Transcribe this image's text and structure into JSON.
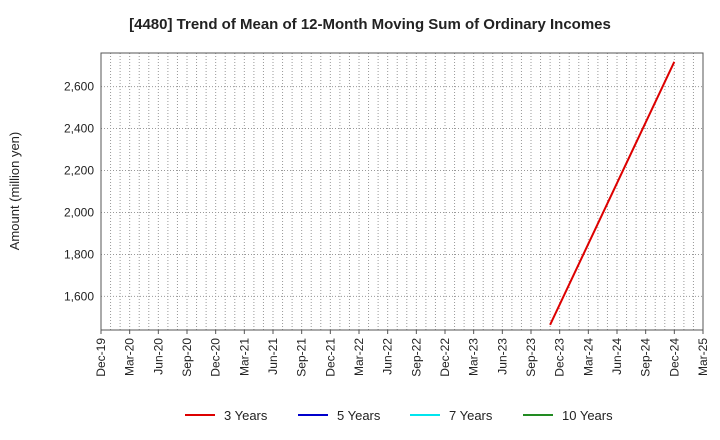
{
  "chart_data": {
    "type": "line",
    "title": "[4480]  Trend of Mean of 12-Month Moving Sum of Ordinary Incomes",
    "xlabel": "",
    "ylabel": "Amount (million yen)",
    "x_ticks": [
      "Dec-19",
      "Mar-20",
      "Jun-20",
      "Sep-20",
      "Dec-20",
      "Mar-21",
      "Jun-21",
      "Sep-21",
      "Dec-21",
      "Mar-22",
      "Jun-22",
      "Sep-22",
      "Dec-22",
      "Mar-23",
      "Jun-23",
      "Sep-23",
      "Dec-23",
      "Mar-24",
      "Jun-24",
      "Sep-24",
      "Dec-24",
      "Mar-25"
    ],
    "y_ticks": [
      1600,
      1800,
      2000,
      2200,
      2400,
      2600
    ],
    "y_tick_labels": [
      "1,600",
      "1,800",
      "2,000",
      "2,200",
      "2,400",
      "2,600"
    ],
    "ylim": [
      1440,
      2760
    ],
    "grid": true,
    "legend_position": "bottom",
    "series": [
      {
        "name": "3 Years",
        "color": "#dd0000",
        "x": [
          "Nov-23",
          "Dec-24"
        ],
        "y": [
          1465,
          2718
        ]
      },
      {
        "name": "5 Years",
        "color": "#0000cc",
        "x": [],
        "y": []
      },
      {
        "name": "7 Years",
        "color": "#00e5ee",
        "x": [],
        "y": []
      },
      {
        "name": "10 Years",
        "color": "#228b22",
        "x": [],
        "y": []
      }
    ]
  }
}
